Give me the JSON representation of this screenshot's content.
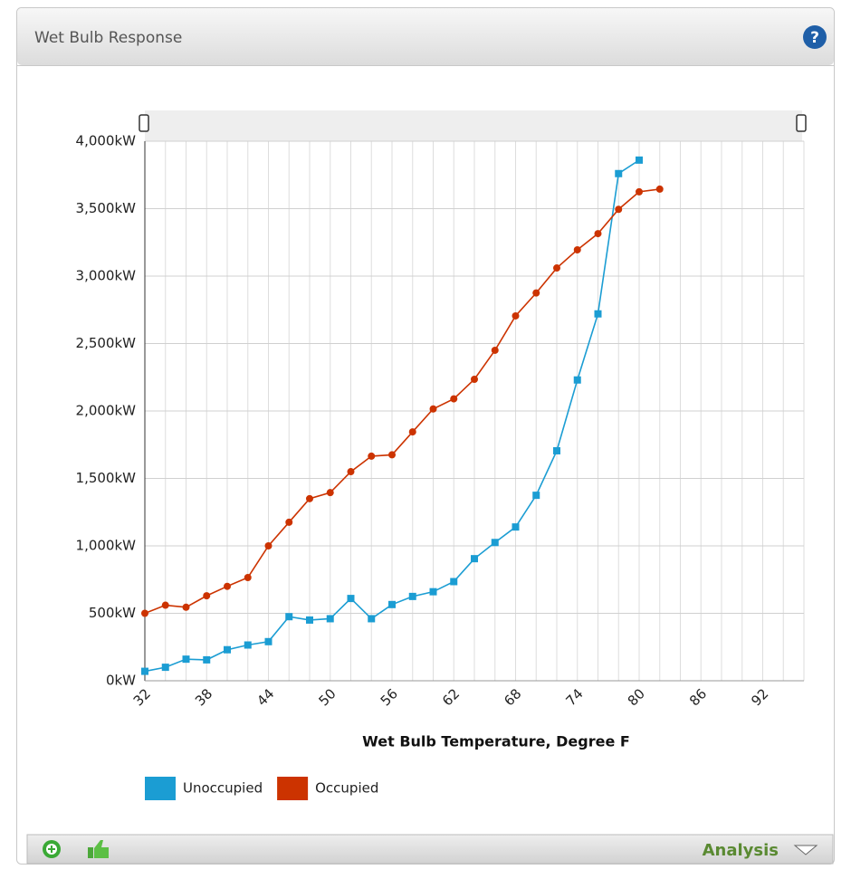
{
  "panel": {
    "title": "Wet Bulb Response",
    "footer_label": "Analysis"
  },
  "chart_data": {
    "type": "line",
    "x_label": "Wet Bulb Temperature, Degree F",
    "x": [
      32,
      34,
      36,
      38,
      40,
      42,
      44,
      46,
      48,
      50,
      52,
      54,
      56,
      58,
      60,
      62,
      64,
      66,
      68,
      70,
      72,
      74,
      76,
      78,
      80,
      82
    ],
    "series": [
      {
        "name": "Unoccupied",
        "color": "#1b9dd3",
        "marker": "square",
        "values": [
          70,
          100,
          160,
          155,
          230,
          265,
          290,
          475,
          450,
          460,
          610,
          460,
          565,
          625,
          660,
          735,
          905,
          1025,
          1140,
          1375,
          1705,
          2230,
          2720,
          3760,
          3860,
          null
        ]
      },
      {
        "name": "Occupied",
        "color": "#cc3300",
        "marker": "circle",
        "values": [
          500,
          560,
          545,
          630,
          700,
          765,
          1000,
          1175,
          1350,
          1395,
          1550,
          1665,
          1675,
          1845,
          2015,
          2090,
          2235,
          2450,
          2705,
          2875,
          3060,
          3195,
          3315,
          3495,
          3625,
          3645
        ]
      }
    ],
    "xlim": [
      32,
      96
    ],
    "xticks": [
      32,
      38,
      44,
      50,
      56,
      62,
      68,
      74,
      80,
      86,
      92
    ],
    "xminorticks": [
      34,
      36,
      40,
      42,
      46,
      48,
      52,
      54,
      58,
      60,
      64,
      66,
      70,
      72,
      76,
      78,
      82,
      84,
      88,
      90,
      94,
      96
    ],
    "ylim": [
      0,
      4000
    ],
    "yticks": [
      {
        "value": 0,
        "label": "0kW"
      },
      {
        "value": 500,
        "label": "500kW"
      },
      {
        "value": 1000,
        "label": "1,000kW"
      },
      {
        "value": 1500,
        "label": "1,500kW"
      },
      {
        "value": 2000,
        "label": "2,000kW"
      },
      {
        "value": 2500,
        "label": "2,500kW"
      },
      {
        "value": 3000,
        "label": "3,000kW"
      },
      {
        "value": 3500,
        "label": "3,500kW"
      },
      {
        "value": 4000,
        "label": "4,000kW"
      }
    ],
    "grid": true,
    "legend": "bottom-left"
  }
}
